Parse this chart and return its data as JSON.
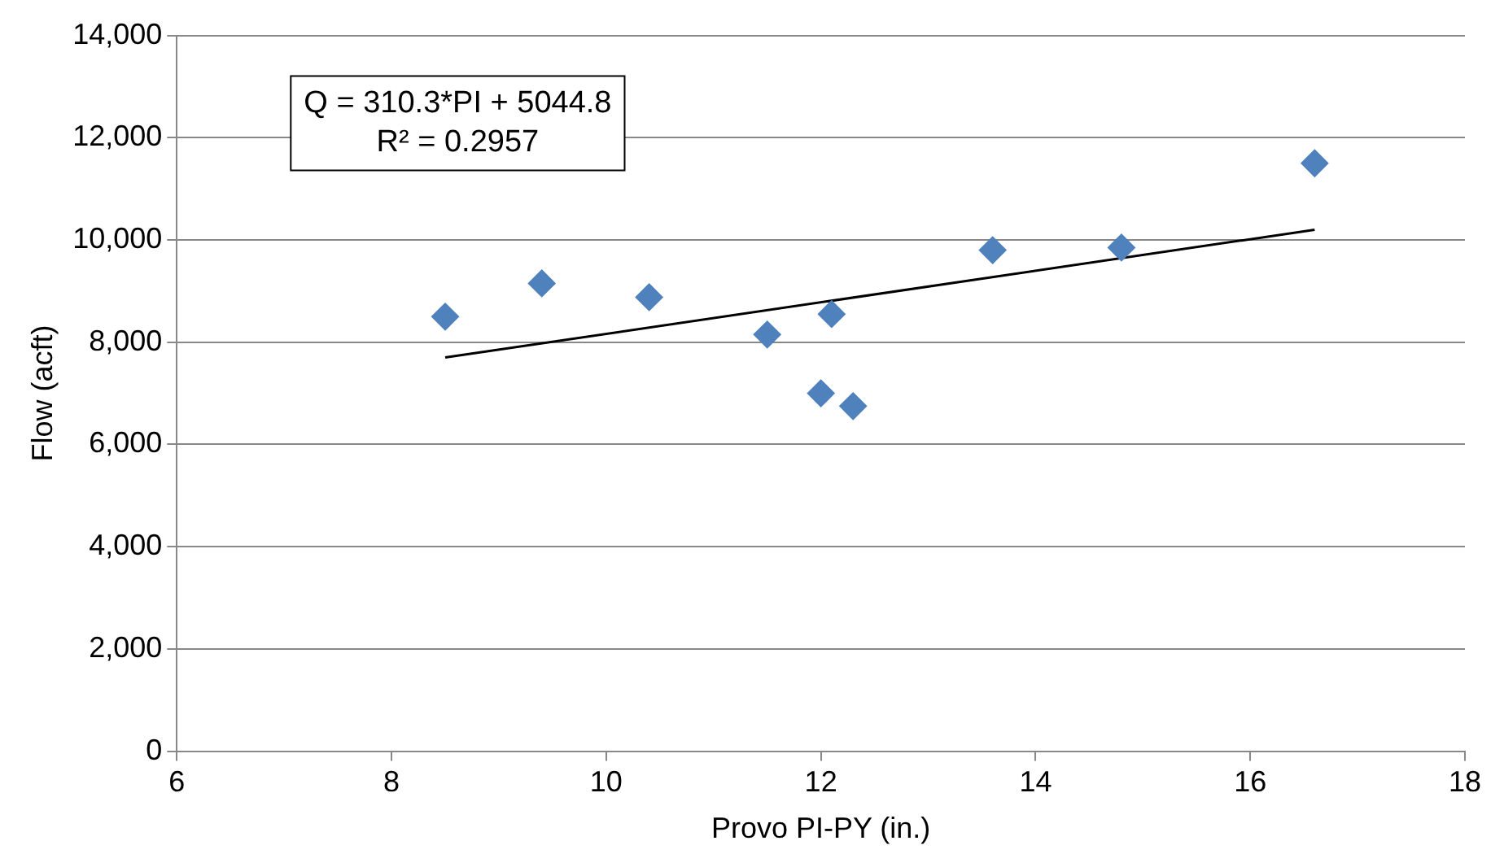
{
  "chart_data": {
    "type": "scatter",
    "xlabel": "Provo PI-PY (in.)",
    "ylabel": "Flow (acft)",
    "x": [
      8.5,
      9.4,
      10.4,
      11.5,
      12.1,
      12.0,
      12.3,
      13.6,
      14.8,
      16.6
    ],
    "series": [
      {
        "type": "scatter",
        "color": "#4f81bd",
        "values": [
          8500,
          9150,
          8880,
          8150,
          8550,
          7000,
          6750,
          9800,
          9850,
          11500
        ]
      },
      {
        "type": "line",
        "color": "#000000",
        "marker": "none",
        "x": [
          8.5,
          16.6
        ],
        "values": [
          7700,
          10200
        ]
      }
    ],
    "xlim": [
      6,
      18
    ],
    "xticks": [
      6,
      8,
      10,
      12,
      14,
      16,
      18
    ],
    "ylim": [
      0,
      14000
    ],
    "yticks": [
      {
        "value": 0,
        "label": "0"
      },
      {
        "value": 2000,
        "label": "2,000"
      },
      {
        "value": 4000,
        "label": "4,000"
      },
      {
        "value": 6000,
        "label": "6,000"
      },
      {
        "value": 8000,
        "label": "8,000"
      },
      {
        "value": 10000,
        "label": "10,000"
      },
      {
        "value": 12000,
        "label": "12,000"
      },
      {
        "value": 14000,
        "label": "14,000"
      }
    ],
    "grid": "y",
    "legend": false,
    "marker": "diamond",
    "annotations": [
      "Q = 310.3*PI + 5044.8",
      "R² = 0.2957"
    ]
  }
}
